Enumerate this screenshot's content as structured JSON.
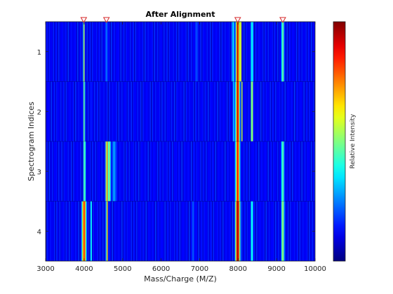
{
  "chart_data": {
    "type": "heatmap",
    "title": "After Alignment",
    "xlabel": "Mass/Charge (M/Z)",
    "ylabel": "Spectrogram Indices",
    "colorbar_label": "Relative Intensity",
    "colormap": "jet",
    "xlim": [
      3000,
      10000
    ],
    "x_ticks": [
      3000,
      4000,
      5000,
      6000,
      7000,
      8000,
      9000,
      10000
    ],
    "rows": [
      1,
      2,
      3,
      4
    ],
    "reference_markers": [
      3990,
      4580,
      7990,
      9160
    ],
    "marker_color": "#d62728",
    "background_level": 0.12,
    "row_profiles": [
      {
        "row": 1,
        "peaks": [
          {
            "mz": 3995,
            "width": 18,
            "intensity": 0.55
          },
          {
            "mz": 4585,
            "width": 12,
            "intensity": 0.42
          },
          {
            "mz": 6920,
            "width": 40,
            "intensity": 0.2
          },
          {
            "mz": 7870,
            "width": 20,
            "intensity": 0.4
          },
          {
            "mz": 7990,
            "width": 35,
            "intensity": 0.95
          },
          {
            "mz": 8060,
            "width": 15,
            "intensity": 0.85
          },
          {
            "mz": 8360,
            "width": 15,
            "intensity": 0.55
          },
          {
            "mz": 9160,
            "width": 28,
            "intensity": 0.5
          }
        ]
      },
      {
        "row": 2,
        "peaks": [
          {
            "mz": 4000,
            "width": 20,
            "intensity": 0.48
          },
          {
            "mz": 4180,
            "width": 12,
            "intensity": 0.2
          },
          {
            "mz": 7890,
            "width": 18,
            "intensity": 0.35
          },
          {
            "mz": 7990,
            "width": 40,
            "intensity": 0.93
          },
          {
            "mz": 8100,
            "width": 14,
            "intensity": 0.55
          },
          {
            "mz": 8360,
            "width": 14,
            "intensity": 0.8
          }
        ]
      },
      {
        "row": 3,
        "peaks": [
          {
            "mz": 4010,
            "width": 22,
            "intensity": 0.52
          },
          {
            "mz": 4590,
            "width": 18,
            "intensity": 0.85
          },
          {
            "mz": 4650,
            "width": 30,
            "intensity": 0.55
          },
          {
            "mz": 4780,
            "width": 50,
            "intensity": 0.28
          },
          {
            "mz": 7990,
            "width": 40,
            "intensity": 0.88
          },
          {
            "mz": 9160,
            "width": 30,
            "intensity": 0.48
          }
        ]
      },
      {
        "row": 4,
        "peaks": [
          {
            "mz": 4000,
            "width": 40,
            "intensity": 0.85
          },
          {
            "mz": 4180,
            "width": 14,
            "intensity": 0.48
          },
          {
            "mz": 4595,
            "width": 18,
            "intensity": 0.7
          },
          {
            "mz": 6830,
            "width": 30,
            "intensity": 0.22
          },
          {
            "mz": 7990,
            "width": 45,
            "intensity": 0.97
          },
          {
            "mz": 8360,
            "width": 18,
            "intensity": 0.5
          },
          {
            "mz": 9160,
            "width": 30,
            "intensity": 0.55
          }
        ]
      }
    ]
  }
}
